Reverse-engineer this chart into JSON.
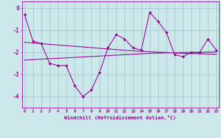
{
  "xlabel": "Windchill (Refroidissement éolien,°C)",
  "background_color": "#cce8eb",
  "grid_color": "#aacdd2",
  "line_color": "#990099",
  "hours": [
    0,
    1,
    2,
    3,
    4,
    5,
    6,
    7,
    8,
    9,
    10,
    11,
    12,
    13,
    14,
    15,
    16,
    17,
    18,
    19,
    20,
    21,
    22,
    23
  ],
  "windchill": [
    -0.3,
    -1.5,
    -1.6,
    -2.5,
    -2.6,
    -2.6,
    -3.5,
    -4.0,
    -3.7,
    -2.9,
    -1.8,
    -1.2,
    -1.4,
    -1.8,
    -1.9,
    -0.2,
    -0.6,
    -1.1,
    -2.1,
    -2.2,
    -2.0,
    -2.0,
    -1.4,
    -1.9
  ],
  "trend_upper": [
    -1.55,
    -1.58,
    -1.61,
    -1.64,
    -1.67,
    -1.7,
    -1.73,
    -1.76,
    -1.79,
    -1.82,
    -1.85,
    -1.88,
    -1.91,
    -1.93,
    -1.95,
    -1.97,
    -1.99,
    -2.01,
    -2.03,
    -2.05,
    -2.06,
    -2.07,
    -2.08,
    -2.09
  ],
  "trend_lower": [
    -2.35,
    -2.33,
    -2.31,
    -2.29,
    -2.27,
    -2.25,
    -2.23,
    -2.21,
    -2.19,
    -2.17,
    -2.15,
    -2.13,
    -2.11,
    -2.09,
    -2.07,
    -2.05,
    -2.04,
    -2.03,
    -2.02,
    -2.01,
    -2.0,
    -2.0,
    -1.99,
    -1.98
  ],
  "ylim": [
    -4.5,
    0.3
  ],
  "yticks": [
    0,
    -1,
    -2,
    -3,
    -4
  ],
  "xlim": [
    -0.3,
    23.3
  ]
}
